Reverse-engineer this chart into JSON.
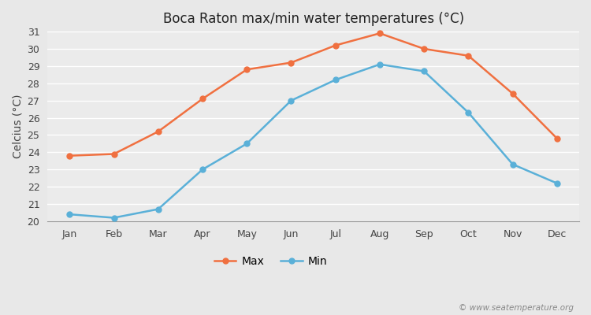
{
  "title": "Boca Raton max/min water temperatures (°C)",
  "ylabel": "Celcius (°C)",
  "months": [
    "Jan",
    "Feb",
    "Mar",
    "Apr",
    "May",
    "Jun",
    "Jul",
    "Aug",
    "Sep",
    "Oct",
    "Nov",
    "Dec"
  ],
  "max_temps": [
    23.8,
    23.9,
    25.2,
    27.1,
    28.8,
    29.2,
    30.2,
    30.9,
    30.0,
    29.6,
    27.4,
    24.8
  ],
  "min_temps": [
    20.4,
    20.2,
    20.7,
    23.0,
    24.5,
    27.0,
    28.2,
    29.1,
    28.7,
    26.3,
    23.3,
    22.2
  ],
  "max_color": "#f07040",
  "min_color": "#5ab0d8",
  "fig_bg_color": "#e8e8e8",
  "plot_bg_color": "#ebebeb",
  "ylim": [
    20,
    31
  ],
  "yticks": [
    20,
    21,
    22,
    23,
    24,
    25,
    26,
    27,
    28,
    29,
    30,
    31
  ],
  "grid_color": "#ffffff",
  "watermark": "© www.seatemperature.org",
  "legend_max": "Max",
  "legend_min": "Min",
  "marker_style": "o",
  "marker_size": 5,
  "linewidth": 1.8
}
